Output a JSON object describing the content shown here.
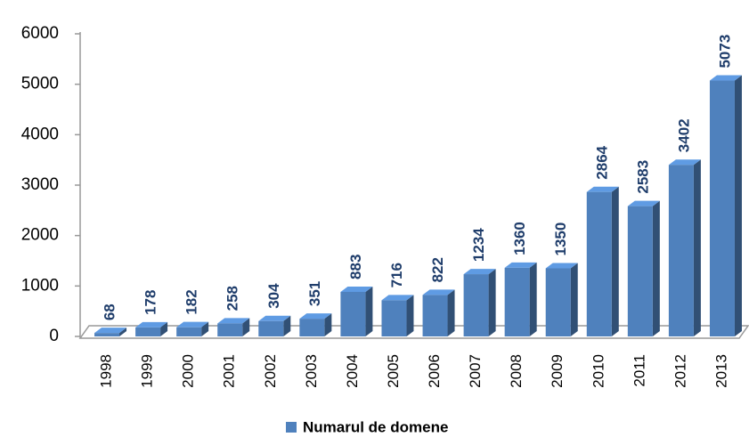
{
  "chart_data": {
    "type": "bar3d",
    "categories": [
      "1998",
      "1999",
      "2000",
      "2001",
      "2002",
      "2003",
      "2004",
      "2005",
      "2006",
      "2007",
      "2008",
      "2009",
      "2010",
      "2011",
      "2012",
      "2013"
    ],
    "series": [
      {
        "name": "Numarul de domene",
        "color": "#4f81bd",
        "values": [
          68,
          178,
          182,
          258,
          304,
          351,
          883,
          716,
          822,
          1234,
          1360,
          1350,
          2864,
          2583,
          3402,
          5073
        ]
      }
    ],
    "ylim": [
      0,
      6000
    ],
    "yticks": [
      0,
      1000,
      2000,
      3000,
      4000,
      5000,
      6000
    ],
    "grid": false,
    "legend": "bottom"
  }
}
